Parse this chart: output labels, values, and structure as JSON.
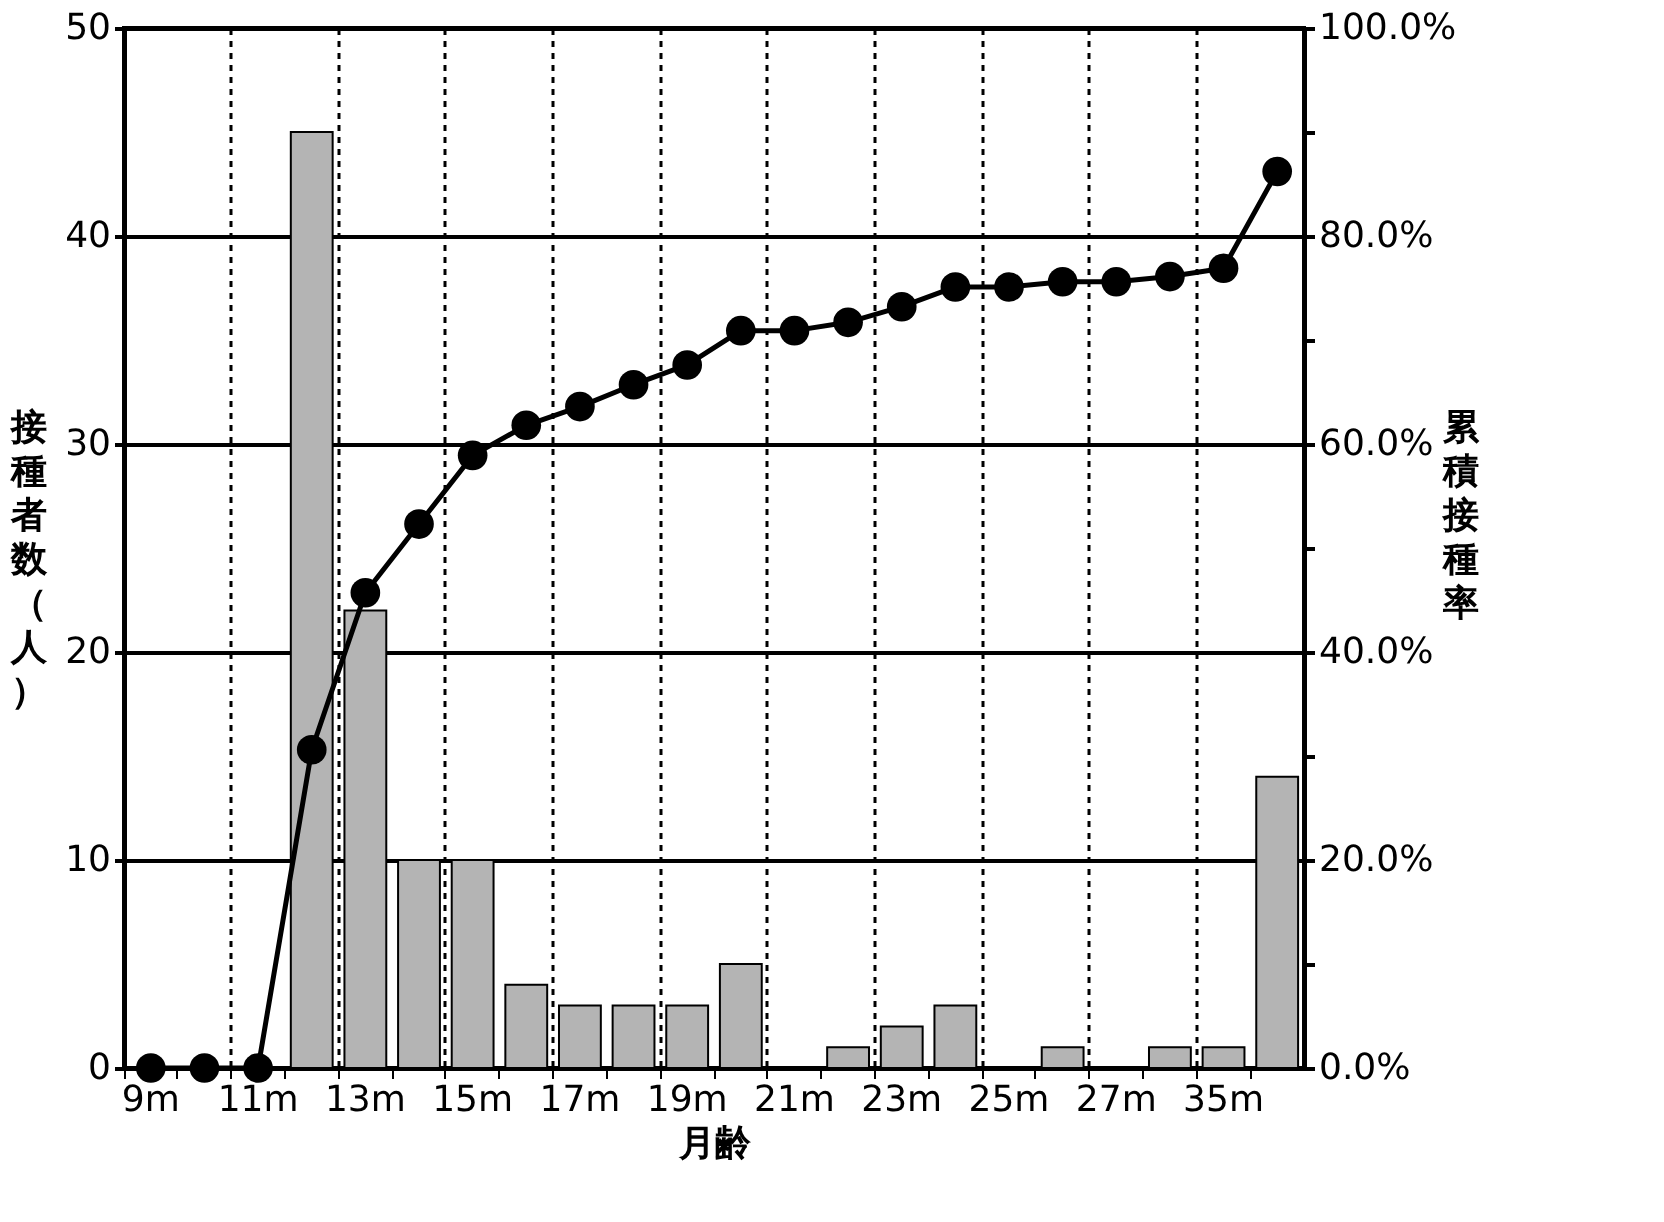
{
  "chart_data": {
    "type": "bar",
    "xlabel": "月齢",
    "ylabel": "接種者数（人）",
    "y2label": "累積接種率",
    "categories": [
      "9m",
      null,
      "11m",
      null,
      "13m",
      null,
      "15m",
      null,
      "17m",
      null,
      "19m",
      null,
      "21m",
      null,
      "23m",
      null,
      "25m",
      null,
      "27m",
      null,
      "35m",
      null
    ],
    "series": [
      {
        "color": "#b4b4b4",
        "values": [
          0,
          0,
          0,
          45,
          22,
          10,
          10,
          4,
          3,
          3,
          3,
          5,
          0,
          1,
          2,
          3,
          0,
          1,
          0,
          1,
          1,
          14
        ]
      },
      {
        "type": "line",
        "axis": "y2",
        "color": "#000000",
        "values": [
          0,
          0,
          0,
          30.6,
          45.7,
          52.3,
          58.9,
          61.8,
          63.6,
          65.7,
          67.6,
          70.9,
          70.9,
          71.7,
          73.2,
          75.1,
          75.1,
          75.6,
          75.6,
          76.1,
          76.9,
          86.2
        ]
      }
    ],
    "ylim": [
      0,
      50
    ],
    "yticks": [
      0,
      10,
      20,
      30,
      40,
      50
    ],
    "y2lim": [
      0,
      100
    ],
    "y2ticks": [
      {
        "value": 0,
        "label": "0.0%"
      },
      {
        "value": 10,
        "label": null
      },
      {
        "value": 20,
        "label": "20.0%"
      },
      {
        "value": 30,
        "label": null
      },
      {
        "value": 40,
        "label": "40.0%"
      },
      {
        "value": 50,
        "label": null
      },
      {
        "value": 60,
        "label": "60.0%"
      },
      {
        "value": 70,
        "label": null
      },
      {
        "value": 80,
        "label": "80.0%"
      },
      {
        "value": 90,
        "label": null
      },
      {
        "value": 100,
        "label": "100.0%"
      }
    ],
    "grid": true,
    "marker": "circle",
    "line_style": "solid"
  }
}
